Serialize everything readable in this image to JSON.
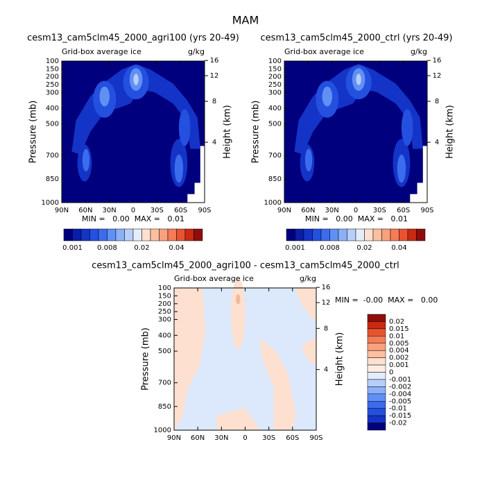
{
  "title": "MAM",
  "chart_data": [
    {
      "type": "contour",
      "title": "cesm13_cam5clm45_2000_agri100 (yrs 20-49)",
      "left_label": "Grid-box average ice",
      "right_label": "g/kg",
      "ylabel": "Pressure (mb)",
      "y2label": "Height (km)",
      "xlim": [
        90,
        -90
      ],
      "xticks": [
        {
          "value": 90,
          "label": "90N"
        },
        {
          "value": 60,
          "label": "60N"
        },
        {
          "value": 30,
          "label": "30N"
        },
        0,
        {
          "value": -30,
          "label": "30S"
        },
        {
          "value": -60,
          "label": "60S"
        },
        {
          "value": -90,
          "label": "90S"
        }
      ],
      "ylim": [
        1000,
        100
      ],
      "yticks": [
        100,
        150,
        200,
        250,
        300,
        400,
        500,
        700,
        850,
        1000
      ],
      "y2ticks": [
        16,
        12,
        8,
        4
      ],
      "stats": "MIN =   0.00  MAX =   0.01",
      "colorbar": {
        "orientation": "horizontal",
        "colors": [
          "#00007f",
          "#0a1ca8",
          "#1434c8",
          "#2450e0",
          "#3c6cee",
          "#6090f4",
          "#8cb0f8",
          "#b8cefa",
          "#e4edfc",
          "#fde0d0",
          "#fcc0a0",
          "#f9a07c",
          "#f47c56",
          "#e85430",
          "#c82a14",
          "#900c0c"
        ],
        "labels": [
          0.001,
          0.008,
          0.02,
          0.04
        ]
      }
    },
    {
      "type": "contour",
      "title": "cesm13_cam5clm45_2000_ctrl (yrs 20-49)",
      "left_label": "Grid-box average ice",
      "right_label": "g/kg",
      "ylabel": "Pressure (mb)",
      "y2label": "Height (km)",
      "xlim": [
        90,
        -90
      ],
      "xticks": [
        {
          "value": 90,
          "label": "90N"
        },
        {
          "value": 60,
          "label": "60N"
        },
        {
          "value": 30,
          "label": "30N"
        },
        0,
        {
          "value": -30,
          "label": "30S"
        },
        {
          "value": -60,
          "label": "60S"
        },
        {
          "value": -90,
          "label": "90S"
        }
      ],
      "ylim": [
        1000,
        100
      ],
      "yticks": [
        100,
        150,
        200,
        250,
        300,
        400,
        500,
        700,
        850,
        1000
      ],
      "y2ticks": [
        16,
        12,
        8,
        4
      ],
      "stats": "MIN =   0.00  MAX =   0.01",
      "colorbar": {
        "orientation": "horizontal",
        "colors": [
          "#00007f",
          "#0a1ca8",
          "#1434c8",
          "#2450e0",
          "#3c6cee",
          "#6090f4",
          "#8cb0f8",
          "#b8cefa",
          "#e4edfc",
          "#fde0d0",
          "#fcc0a0",
          "#f9a07c",
          "#f47c56",
          "#e85430",
          "#c82a14",
          "#900c0c"
        ],
        "labels": [
          0.001,
          0.008,
          0.02,
          0.04
        ]
      }
    },
    {
      "type": "contour",
      "title": "cesm13_cam5clm45_2000_agri100 - cesm13_cam5clm45_2000_ctrl",
      "left_label": "Grid-box average ice",
      "right_label": "g/kg",
      "ylabel": "Pressure (mb)",
      "y2label": "Height (km)",
      "xlim": [
        90,
        -90
      ],
      "xticks": [
        {
          "value": 90,
          "label": "90N"
        },
        {
          "value": 60,
          "label": "60N"
        },
        {
          "value": 30,
          "label": "30N"
        },
        0,
        {
          "value": -30,
          "label": "30S"
        },
        {
          "value": -60,
          "label": "60S"
        },
        {
          "value": -90,
          "label": "90S"
        }
      ],
      "ylim": [
        1000,
        100
      ],
      "yticks": [
        100,
        150,
        200,
        250,
        300,
        400,
        500,
        700,
        850,
        1000
      ],
      "y2ticks": [
        16,
        12,
        8,
        4
      ],
      "stats": "MIN =  -0.00  MAX =   0.00",
      "colorbar": {
        "orientation": "vertical",
        "colors": [
          "#900c0c",
          "#c82a14",
          "#e85430",
          "#f47c56",
          "#f9a07c",
          "#fcc0a0",
          "#fde0d0",
          "#fdeee4",
          "#e4edfc",
          "#b8cefa",
          "#8cb0f8",
          "#6090f4",
          "#3c6cee",
          "#2450e0",
          "#1434c8",
          "#00007f"
        ],
        "labels": [
          0.02,
          0.015,
          0.01,
          0.005,
          0.004,
          0.002,
          0.001,
          0,
          -0.001,
          -0.002,
          -0.004,
          -0.005,
          -0.01,
          -0.015,
          -0.02
        ]
      }
    }
  ]
}
